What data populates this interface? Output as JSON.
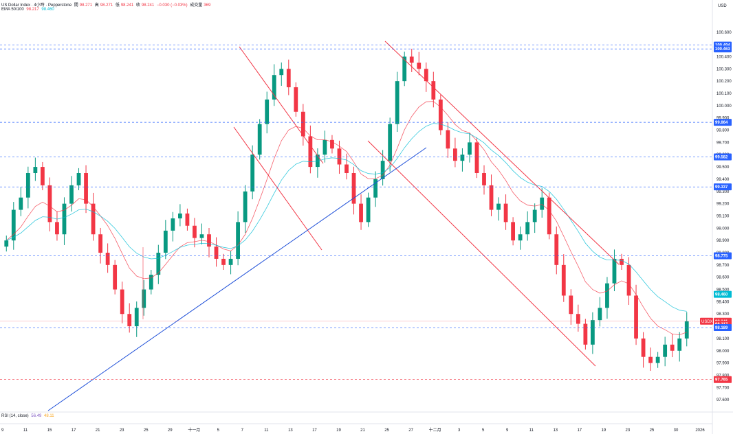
{
  "header": {
    "symbol": "US Dollar Index · 4小時 · Pepperstone",
    "open_label": "開",
    "open": "98.271",
    "high_label": "高",
    "high": "98.271",
    "low_label": "低",
    "low": "98.241",
    "close_label": "收",
    "close": "98.241",
    "change": "−0.030 (−0.03%)",
    "volume_label": "成交量",
    "volume": "369"
  },
  "ema_legend": {
    "label": "EMA 50/100",
    "ema50": "98.217",
    "ema100": "98.460"
  },
  "rsi_legend": {
    "label": "RSI (14, close)",
    "v1": "56.49",
    "v2": "48.11"
  },
  "colors": {
    "up": "#089981",
    "down": "#f23645",
    "ema50": "#f23645",
    "ema100": "#00bcd4",
    "channel": "#f23645",
    "trendline": "#1e4fd8",
    "hline": "#2962ff",
    "price_line": "#f23645"
  },
  "chart_data": {
    "type": "candlestick",
    "currency": "USD",
    "ylim": [
      97.5,
      100.75
    ],
    "y_ticks": [
      "100.600",
      "100.400",
      "100.300",
      "100.200",
      "100.100",
      "100.000",
      "99.900",
      "99.800",
      "99.700",
      "99.600",
      "99.500",
      "99.400",
      "99.300",
      "99.200",
      "99.100",
      "99.000",
      "98.900",
      "98.800",
      "98.700",
      "98.600",
      "98.500",
      "98.400",
      "98.300",
      "98.200",
      "98.100",
      "98.000",
      "97.900",
      "97.800",
      "97.700",
      "97.600"
    ],
    "x_ticks": [
      "9",
      "11",
      "15",
      "17",
      "21",
      "23",
      "25",
      "29",
      "十一月",
      "5",
      "7",
      "11",
      "13",
      "17",
      "19",
      "21",
      "25",
      "27",
      "十二月",
      "3",
      "5",
      "9",
      "11",
      "13",
      "17",
      "19",
      "23",
      "25",
      "30",
      "2026"
    ],
    "closes": [
      98.9,
      99.15,
      99.25,
      99.45,
      99.5,
      99.35,
      99.05,
      98.95,
      99.2,
      99.35,
      99.45,
      99.2,
      98.95,
      98.8,
      98.7,
      98.5,
      98.3,
      98.2,
      98.35,
      98.5,
      98.62,
      98.8,
      98.98,
      99.08,
      99.12,
      99.02,
      98.92,
      98.95,
      98.85,
      98.75,
      98.7,
      98.75,
      99.05,
      99.3,
      99.6,
      99.85,
      100.05,
      100.25,
      100.3,
      100.15,
      99.95,
      99.75,
      99.5,
      99.6,
      99.72,
      99.65,
      99.52,
      99.45,
      99.2,
      99.05,
      99.25,
      99.4,
      99.55,
      99.85,
      100.2,
      100.4,
      100.35,
      100.3,
      100.2,
      100.05,
      99.8,
      99.65,
      99.55,
      99.6,
      99.7,
      99.45,
      99.35,
      99.15,
      99.2,
      99.05,
      98.9,
      98.95,
      99.05,
      99.15,
      99.25,
      98.95,
      98.7,
      98.45,
      98.3,
      98.22,
      98.05,
      98.25,
      98.35,
      98.55,
      98.75,
      98.7,
      98.45,
      98.1,
      97.95,
      97.9,
      97.95,
      98.05,
      98.0,
      98.1,
      98.24
    ],
    "horizontal_levels": [
      {
        "label": "100.494",
        "value": 100.494,
        "style": "dashed",
        "color": "#2962ff"
      },
      {
        "label": "100.463",
        "value": 100.463,
        "style": "dashed",
        "color": "#2962ff"
      },
      {
        "label": "99.864",
        "value": 99.864,
        "style": "dashed",
        "color": "#2962ff"
      },
      {
        "label": "99.582",
        "value": 99.582,
        "style": "dashed",
        "color": "#2962ff"
      },
      {
        "label": "99.337",
        "value": 99.337,
        "style": "dashed",
        "color": "#2962ff"
      },
      {
        "label": "98.775",
        "value": 98.775,
        "style": "dashed",
        "color": "#2962ff"
      },
      {
        "label": "98.460",
        "value": 98.46,
        "style": "label",
        "color": "#00bcd4"
      },
      {
        "label": "98.241",
        "value": 98.241,
        "style": "solid",
        "color": "#f23645"
      },
      {
        "label": "98.217",
        "value": 98.217,
        "style": "label",
        "color": "#f23645"
      },
      {
        "label": "98.189",
        "value": 98.189,
        "style": "dashed",
        "color": "#2962ff"
      },
      {
        "label": "97.765",
        "value": 97.765,
        "style": "dashed",
        "color": "#f23645"
      }
    ],
    "price_tag": "USDX"
  }
}
